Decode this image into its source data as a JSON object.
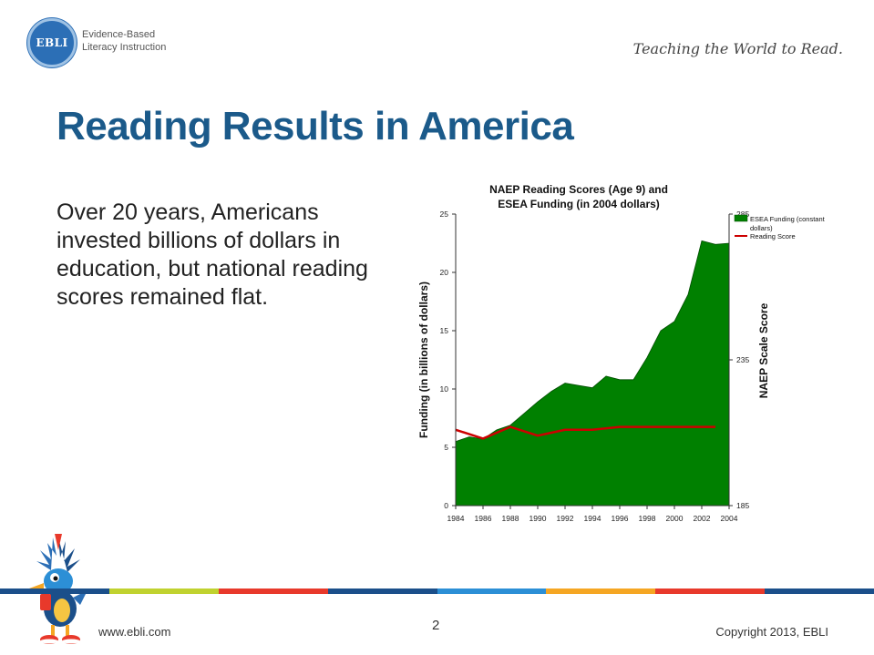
{
  "logo": {
    "circle_text": "EBLI",
    "line1": "Evidence-Based",
    "line2": "Literacy Instruction"
  },
  "tagline": "Teaching the World to Read.",
  "slide_title": "Reading Results in America",
  "body_text": "Over 20 years, Americans invested billions of dollars in education, but national reading scores remained flat.",
  "colors": {
    "title": "#1b5a8a",
    "funding_area": "#008000",
    "reading_line": "#cc0000",
    "stripe": [
      "#1b4f8a",
      "#c0d22f",
      "#e8392b",
      "#1b4f8a",
      "#2c8fd6",
      "#f5a623",
      "#e8392b",
      "#1b4f8a"
    ]
  },
  "chart_data": {
    "type": "area",
    "title_line1": "NAEP Reading Scores (Age 9) and",
    "title_line2": "ESEA Funding (in 2004 dollars)",
    "ylabel": "Funding (in billions of dollars)",
    "y2label": "NAEP Scale Score",
    "xlim": [
      1984,
      2004
    ],
    "ylim": [
      0,
      25
    ],
    "y2lim": [
      185,
      285
    ],
    "x_ticks": [
      1984,
      1986,
      1988,
      1990,
      1992,
      1994,
      1996,
      1998,
      2000,
      2002,
      2004
    ],
    "y_ticks": [
      0,
      5,
      10,
      15,
      20,
      25
    ],
    "y2_ticks": [
      185,
      235,
      285
    ],
    "legend_position": "top-right",
    "series": [
      {
        "name": "ESEA Funding (constant dollars)",
        "axis": "left",
        "x": [
          1984,
          1985,
          1986,
          1987,
          1988,
          1989,
          1990,
          1991,
          1992,
          1993,
          1994,
          1995,
          1996,
          1997,
          1998,
          1999,
          2000,
          2001,
          2002,
          2003,
          2004
        ],
        "values": [
          5.5,
          5.9,
          5.7,
          6.5,
          6.9,
          7.9,
          8.9,
          9.8,
          10.5,
          10.3,
          10.1,
          11.1,
          10.8,
          10.8,
          12.7,
          15.0,
          15.8,
          18.1,
          22.7,
          22.4,
          22.5
        ]
      },
      {
        "name": "Reading Score",
        "axis": "right",
        "x": [
          1984,
          1986,
          1988,
          1990,
          1991,
          1992,
          1994,
          1996,
          1998,
          2000,
          2002,
          2003
        ],
        "values": [
          211,
          208,
          212,
          209,
          210,
          211,
          211,
          212,
          212,
          212,
          212,
          212
        ]
      }
    ]
  },
  "footer": {
    "website": "www.ebli.com",
    "page_number": "2",
    "copyright": "Copyright 2013, EBLI"
  }
}
